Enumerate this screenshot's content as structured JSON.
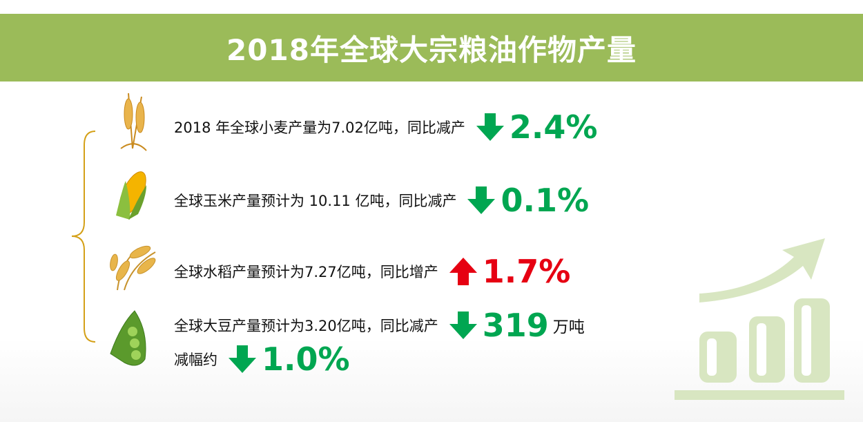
{
  "title": "2018年全球大宗粮油作物产量",
  "items": [
    {
      "text": "2018 年全球小麦产量为7.02亿吨，同比减产",
      "value": "2.4%",
      "trend": "down",
      "color": "#00a651"
    },
    {
      "text": "全球玉米产量预计为 10.11 亿吨，同比减产",
      "value": "0.1%",
      "trend": "down",
      "color": "#00a651"
    },
    {
      "text": "全球水稻产量预计为7.27亿吨，同比增产",
      "value": "1.7%",
      "trend": "up",
      "color": "#e60012"
    },
    {
      "text": "全球大豆产量预计为3.20亿吨，同比减产",
      "value": "319",
      "unit": "万吨",
      "trend": "down",
      "color": "#00a651",
      "text2": "减幅约",
      "value2": "1.0%"
    }
  ]
}
